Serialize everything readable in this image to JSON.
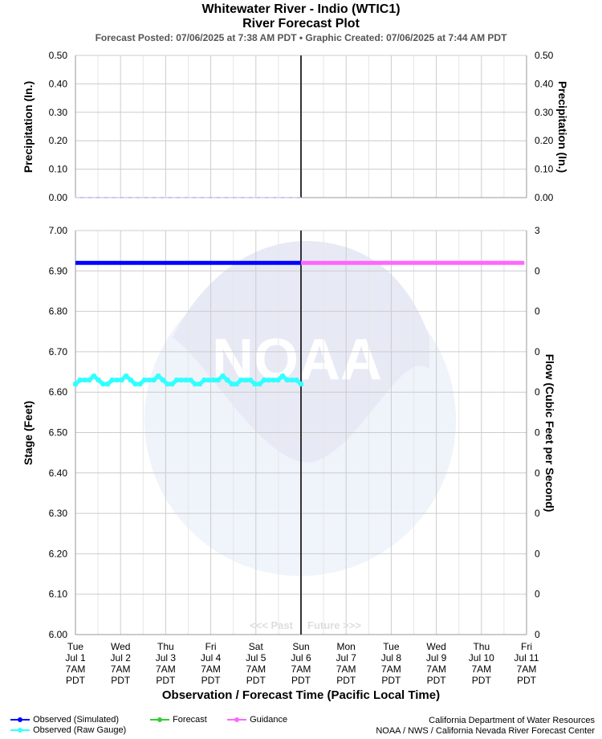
{
  "header": {
    "title": "Whitewater River - Indio (WTIC1)",
    "subtitle": "River Forecast Plot",
    "posted": "Forecast Posted: 07/06/2025 at 7:38 AM PDT  •  Graphic Created: 07/06/2025 at 7:44 AM PDT"
  },
  "chart_data": [
    {
      "type": "line",
      "panel": "precipitation",
      "ylabel_left": "Precipitation (In.)",
      "ylabel_right": "Precipitation (In.)",
      "ylim": [
        0,
        0.5
      ],
      "yticks": [
        "0.50",
        "0.40",
        "0.30",
        "0.20",
        "0.10",
        "0.00"
      ],
      "series": [
        {
          "values": [
            0,
            0,
            0,
            0,
            0,
            0
          ]
        }
      ],
      "grid": true
    },
    {
      "type": "line",
      "panel": "stage",
      "ylabel_left": "Stage (Feet)",
      "ylabel_right": "Flow (Cubic Feet per Second)",
      "ylim": [
        6.0,
        7.0
      ],
      "yticks": [
        "7.00",
        "6.90",
        "6.80",
        "6.70",
        "6.60",
        "6.50",
        "6.40",
        "6.30",
        "6.20",
        "6.10",
        "6.00"
      ],
      "yticks_right": [
        "3",
        "0",
        "0",
        "0",
        "0",
        "0",
        "0",
        "0",
        "0",
        "0",
        "0"
      ],
      "xlabel": "Observation / Forecast Time (Pacific Local Time)",
      "x_ticks": [
        [
          "Tue",
          "Jul 1",
          "7AM",
          "PDT"
        ],
        [
          "Wed",
          "Jul 2",
          "7AM",
          "PDT"
        ],
        [
          "Thu",
          "Jul 3",
          "7AM",
          "PDT"
        ],
        [
          "Fri",
          "Jul 4",
          "7AM",
          "PDT"
        ],
        [
          "Sat",
          "Jul 5",
          "7AM",
          "PDT"
        ],
        [
          "Sun",
          "Jul 6",
          "7AM",
          "PDT"
        ],
        [
          "Mon",
          "Jul 7",
          "7AM",
          "PDT"
        ],
        [
          "Tue",
          "Jul 8",
          "7AM",
          "PDT"
        ],
        [
          "Wed",
          "Jul 9",
          "7AM",
          "PDT"
        ],
        [
          "Thu",
          "Jul 10",
          "7AM",
          "PDT"
        ],
        [
          "Fri",
          "Jul 11",
          "7AM",
          "PDT"
        ]
      ],
      "past_label": "<<< Past",
      "future_label": "Future >>>",
      "series": [
        {
          "name": "Observed (Simulated)",
          "color": "#0000ff",
          "x_start": 0,
          "x_end": 5,
          "values": [
            6.92,
            6.92
          ]
        },
        {
          "name": "Guidance",
          "color": "#ff66ff",
          "x_start": 5,
          "x_end": 9.95,
          "values": [
            6.92,
            6.92
          ]
        },
        {
          "name": "Observed (Raw Gauge)",
          "color": "#33ffff",
          "x_start": 0,
          "x_end": 5,
          "values": [
            6.62,
            6.63,
            6.63,
            6.63,
            6.64,
            6.63,
            6.62,
            6.62,
            6.63,
            6.63,
            6.63,
            6.64,
            6.63,
            6.62,
            6.62,
            6.63,
            6.63,
            6.63,
            6.64,
            6.63,
            6.62,
            6.62,
            6.63,
            6.63,
            6.63,
            6.63,
            6.62,
            6.62,
            6.63,
            6.63,
            6.63,
            6.63,
            6.64,
            6.63,
            6.62,
            6.62,
            6.63,
            6.63,
            6.63,
            6.62,
            6.62,
            6.63,
            6.63,
            6.63,
            6.63,
            6.64,
            6.63,
            6.63,
            6.63,
            6.62
          ]
        }
      ],
      "grid": true
    }
  ],
  "legend": [
    {
      "label": "Observed (Simulated)",
      "color": "#0000ff"
    },
    {
      "label": "Forecast",
      "color": "#33cc33"
    },
    {
      "label": "Guidance",
      "color": "#ff66ff"
    },
    {
      "label": "Observed (Raw Gauge)",
      "color": "#33ffff"
    }
  ],
  "credits": {
    "line1": "California Department of Water Resources",
    "line2": "NOAA / NWS / California Nevada River Forecast Center"
  }
}
